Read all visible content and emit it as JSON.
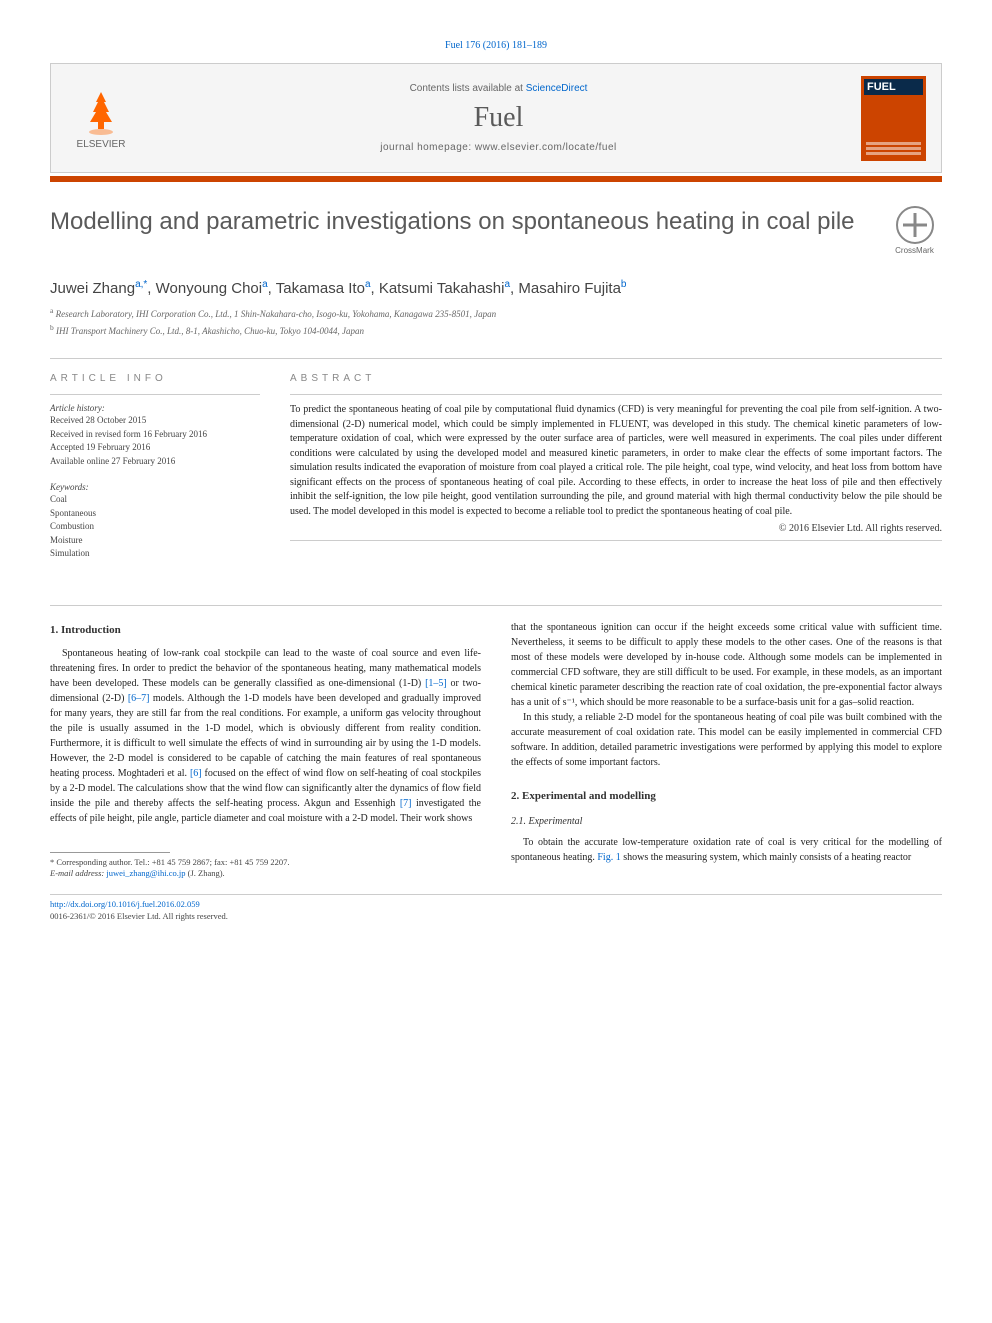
{
  "citation": "Fuel 176 (2016) 181–189",
  "header": {
    "contents_prefix": "Contents lists available at ",
    "contents_link": "ScienceDirect",
    "journal": "Fuel",
    "homepage_label": "journal homepage: ",
    "homepage_url": "www.elsevier.com/locate/fuel",
    "publisher": "ELSEVIER",
    "cover_title": "FUEL"
  },
  "crossmark_label": "CrossMark",
  "title": "Modelling and parametric investigations on spontaneous heating in coal pile",
  "authors_html": "Juwei Zhang|a,*|, Wonyoung Choi|a|, Takamasa Ito|a|, Katsumi Takahashi|a|, Masahiro Fujita|b|",
  "affiliations": [
    "a Research Laboratory, IHI Corporation Co., Ltd., 1 Shin-Nakahara-cho, Isogo-ku, Yokohama, Kanagawa 235-8501, Japan",
    "b IHI Transport Machinery Co., Ltd., 8-1, Akashicho, Chuo-ku, Tokyo 104-0044, Japan"
  ],
  "article_info": {
    "heading": "ARTICLE INFO",
    "history_label": "Article history:",
    "history": [
      "Received 28 October 2015",
      "Received in revised form 16 February 2016",
      "Accepted 19 February 2016",
      "Available online 27 February 2016"
    ],
    "keywords_label": "Keywords:",
    "keywords": [
      "Coal",
      "Spontaneous",
      "Combustion",
      "Moisture",
      "Simulation"
    ]
  },
  "abstract": {
    "heading": "ABSTRACT",
    "text": "To predict the spontaneous heating of coal pile by computational fluid dynamics (CFD) is very meaningful for preventing the coal pile from self-ignition. A two-dimensional (2-D) numerical model, which could be simply implemented in FLUENT, was developed in this study. The chemical kinetic parameters of low-temperature oxidation of coal, which were expressed by the outer surface area of particles, were well measured in experiments. The coal piles under different conditions were calculated by using the developed model and measured kinetic parameters, in order to make clear the effects of some important factors. The simulation results indicated the evaporation of moisture from coal played a critical role. The pile height, coal type, wind velocity, and heat loss from bottom have significant effects on the process of spontaneous heating of coal pile. According to these effects, in order to increase the heat loss of pile and then effectively inhibit the self-ignition, the low pile height, good ventilation surrounding the pile, and ground material with high thermal conductivity below the pile should be used. The model developed in this model is expected to become a reliable tool to predict the spontaneous heating of coal pile.",
    "copyright": "© 2016 Elsevier Ltd. All rights reserved."
  },
  "sections": {
    "intro_heading": "1. Introduction",
    "intro_p1_a": "Spontaneous heating of low-rank coal stockpile can lead to the waste of coal source and even life-threatening fires. In order to predict the behavior of the spontaneous heating, many mathematical models have been developed. These models can be generally classified as one-dimensional (1-D) ",
    "intro_ref1": "[1–5]",
    "intro_p1_b": " or two-dimensional (2-D) ",
    "intro_ref2": "[6–7]",
    "intro_p1_c": " models. Although the 1-D models have been developed and gradually improved for many years, they are still far from the real conditions. For example, a uniform gas velocity throughout the pile is usually assumed in the 1-D model, which is obviously different from reality condition. Furthermore, it is difficult to well simulate the effects of wind in surrounding air by using the 1-D models. However, the 2-D model is considered to be capable of catching the main features of real spontaneous heating process. Moghtaderi et al. ",
    "intro_ref3": "[6]",
    "intro_p1_d": " focused on the effect of wind flow on self-heating of coal stockpiles by a 2-D model. The calculations show that the wind flow can significantly alter the dynamics of flow field inside the pile and thereby affects the self-heating process. Akgun and Essenhigh ",
    "intro_ref4": "[7]",
    "intro_p1_e": " investigated the effects of pile height, pile angle, particle diameter and coal moisture with a 2-D model. Their work shows",
    "col2_p1": "that the spontaneous ignition can occur if the height exceeds some critical value with sufficient time. Nevertheless, it seems to be difficult to apply these models to the other cases. One of the reasons is that most of these models were developed by in-house code. Although some models can be implemented in commercial CFD software, they are still difficult to be used. For example, in these models, as an important chemical kinetic parameter describing the reaction rate of coal oxidation, the pre-exponential factor always has a unit of s⁻¹, which should be more reasonable to be a surface-basis unit for a gas–solid reaction.",
    "col2_p2": "In this study, a reliable 2-D model for the spontaneous heating of coal pile was built combined with the accurate measurement of coal oxidation rate. This model can be easily implemented in commercial CFD software. In addition, detailed parametric investigations were performed by applying this model to explore the effects of some important factors.",
    "exp_heading": "2. Experimental and modelling",
    "exp_sub": "2.1. Experimental",
    "exp_p1_a": "To obtain the accurate low-temperature oxidation rate of coal is very critical for the modelling of spontaneous heating. ",
    "exp_ref1": "Fig. 1",
    "exp_p1_b": " shows the measuring system, which mainly consists of a heating reactor"
  },
  "footnote": {
    "corr": "* Corresponding author. Tel.: +81 45 759 2867; fax: +81 45 759 2207.",
    "email_label": "E-mail address: ",
    "email": "juwei_zhang@ihi.co.jp",
    "email_suffix": " (J. Zhang)."
  },
  "footer": {
    "doi_label": "http://dx.doi.org/",
    "doi": "10.1016/j.fuel.2016.02.059",
    "issn": "0016-2361/© 2016 Elsevier Ltd. All rights reserved."
  },
  "colors": {
    "link": "#0066cc",
    "accent": "#cc4400",
    "elsevier": "#ff6600"
  }
}
